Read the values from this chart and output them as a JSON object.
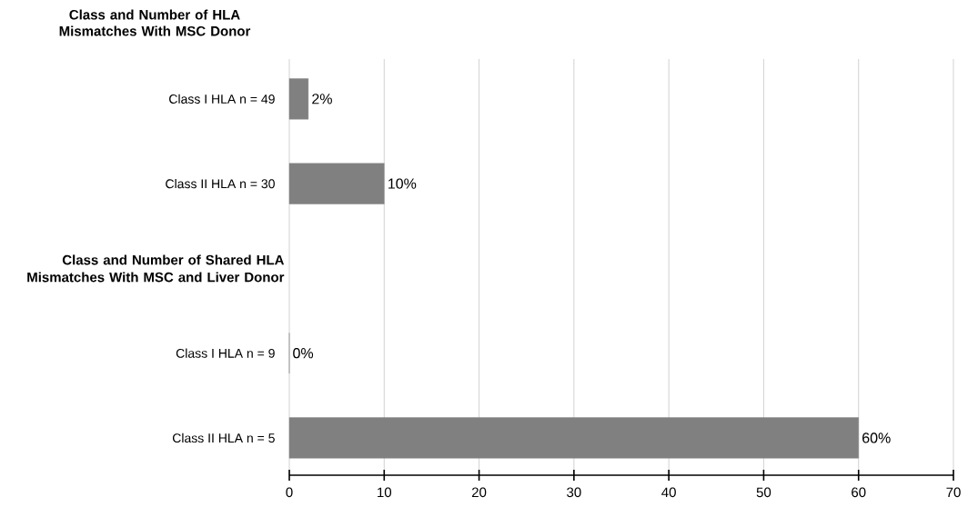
{
  "chart_data": {
    "type": "bar",
    "orientation": "horizontal",
    "title": "Class and Number of  HLA Mismatches With MSC Donor",
    "annotations": [
      {
        "text": "Class and Number of Shared HLA Mismatches With MSC and Liver Donor"
      }
    ],
    "categories": [
      "Class I HLA    n = 49",
      "Class II HLA   n = 30",
      null,
      "Class I HLA    n = 9",
      "Class II HLA   n = 5"
    ],
    "values": [
      2,
      10,
      null,
      0,
      60
    ],
    "value_labels": [
      "2%",
      "10%",
      null,
      "0%",
      "60%"
    ],
    "color": "#808080",
    "xlim": [
      0,
      70
    ],
    "xticks": [
      0,
      10,
      20,
      30,
      40,
      50,
      60,
      70
    ],
    "grid": "x"
  }
}
